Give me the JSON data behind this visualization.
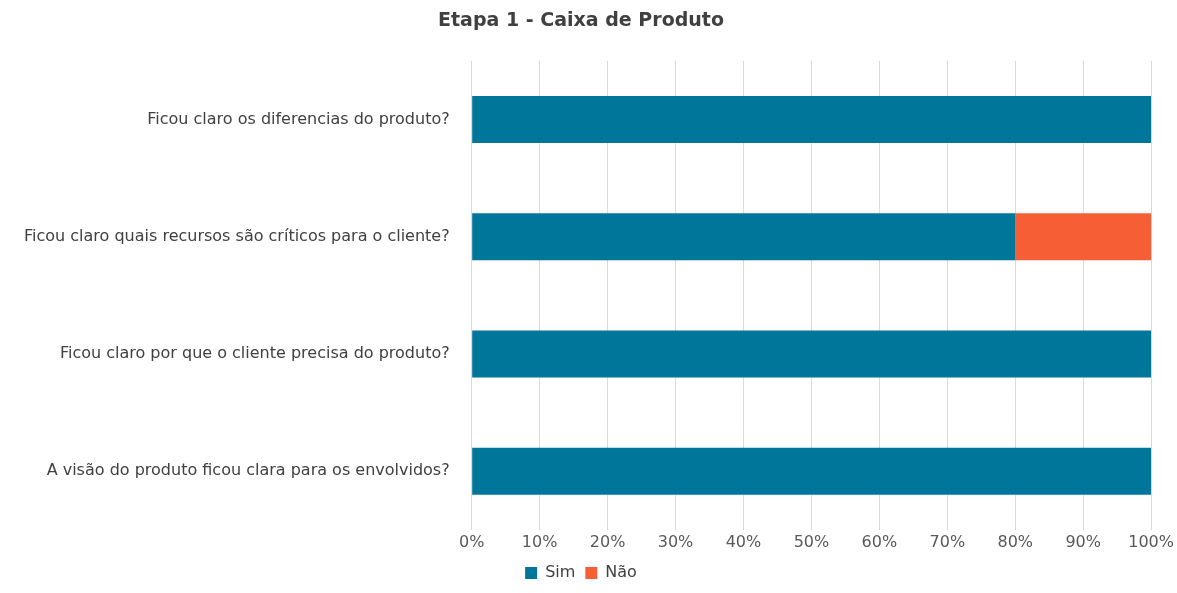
{
  "chart_data": {
    "type": "bar",
    "orientation": "horizontal",
    "stacked": true,
    "title": "Etapa 1 - Caixa de Produto",
    "categories": [
      "Ficou claro os diferencias do produto?",
      "Ficou claro quais recursos são críticos para o cliente?",
      "Ficou claro por que o cliente precisa do produto?",
      "A visão do produto ficou clara para os envolvidos?"
    ],
    "series": [
      {
        "name": "Sim",
        "color": "#00769a",
        "values": [
          100,
          80,
          100,
          100
        ]
      },
      {
        "name": "Não",
        "color": "#f65f35",
        "values": [
          0,
          20,
          0,
          0
        ]
      }
    ],
    "xlim": [
      0,
      100
    ],
    "xticks": [
      {
        "value": 0,
        "label": "0%"
      },
      {
        "value": 10,
        "label": "10%"
      },
      {
        "value": 20,
        "label": "20%"
      },
      {
        "value": 30,
        "label": "30%"
      },
      {
        "value": 40,
        "label": "40%"
      },
      {
        "value": 50,
        "label": "50%"
      },
      {
        "value": 60,
        "label": "60%"
      },
      {
        "value": 70,
        "label": "70%"
      },
      {
        "value": 80,
        "label": "80%"
      },
      {
        "value": 90,
        "label": "90%"
      },
      {
        "value": 100,
        "label": "100%"
      }
    ],
    "grid": "x",
    "legend": "bottom"
  }
}
